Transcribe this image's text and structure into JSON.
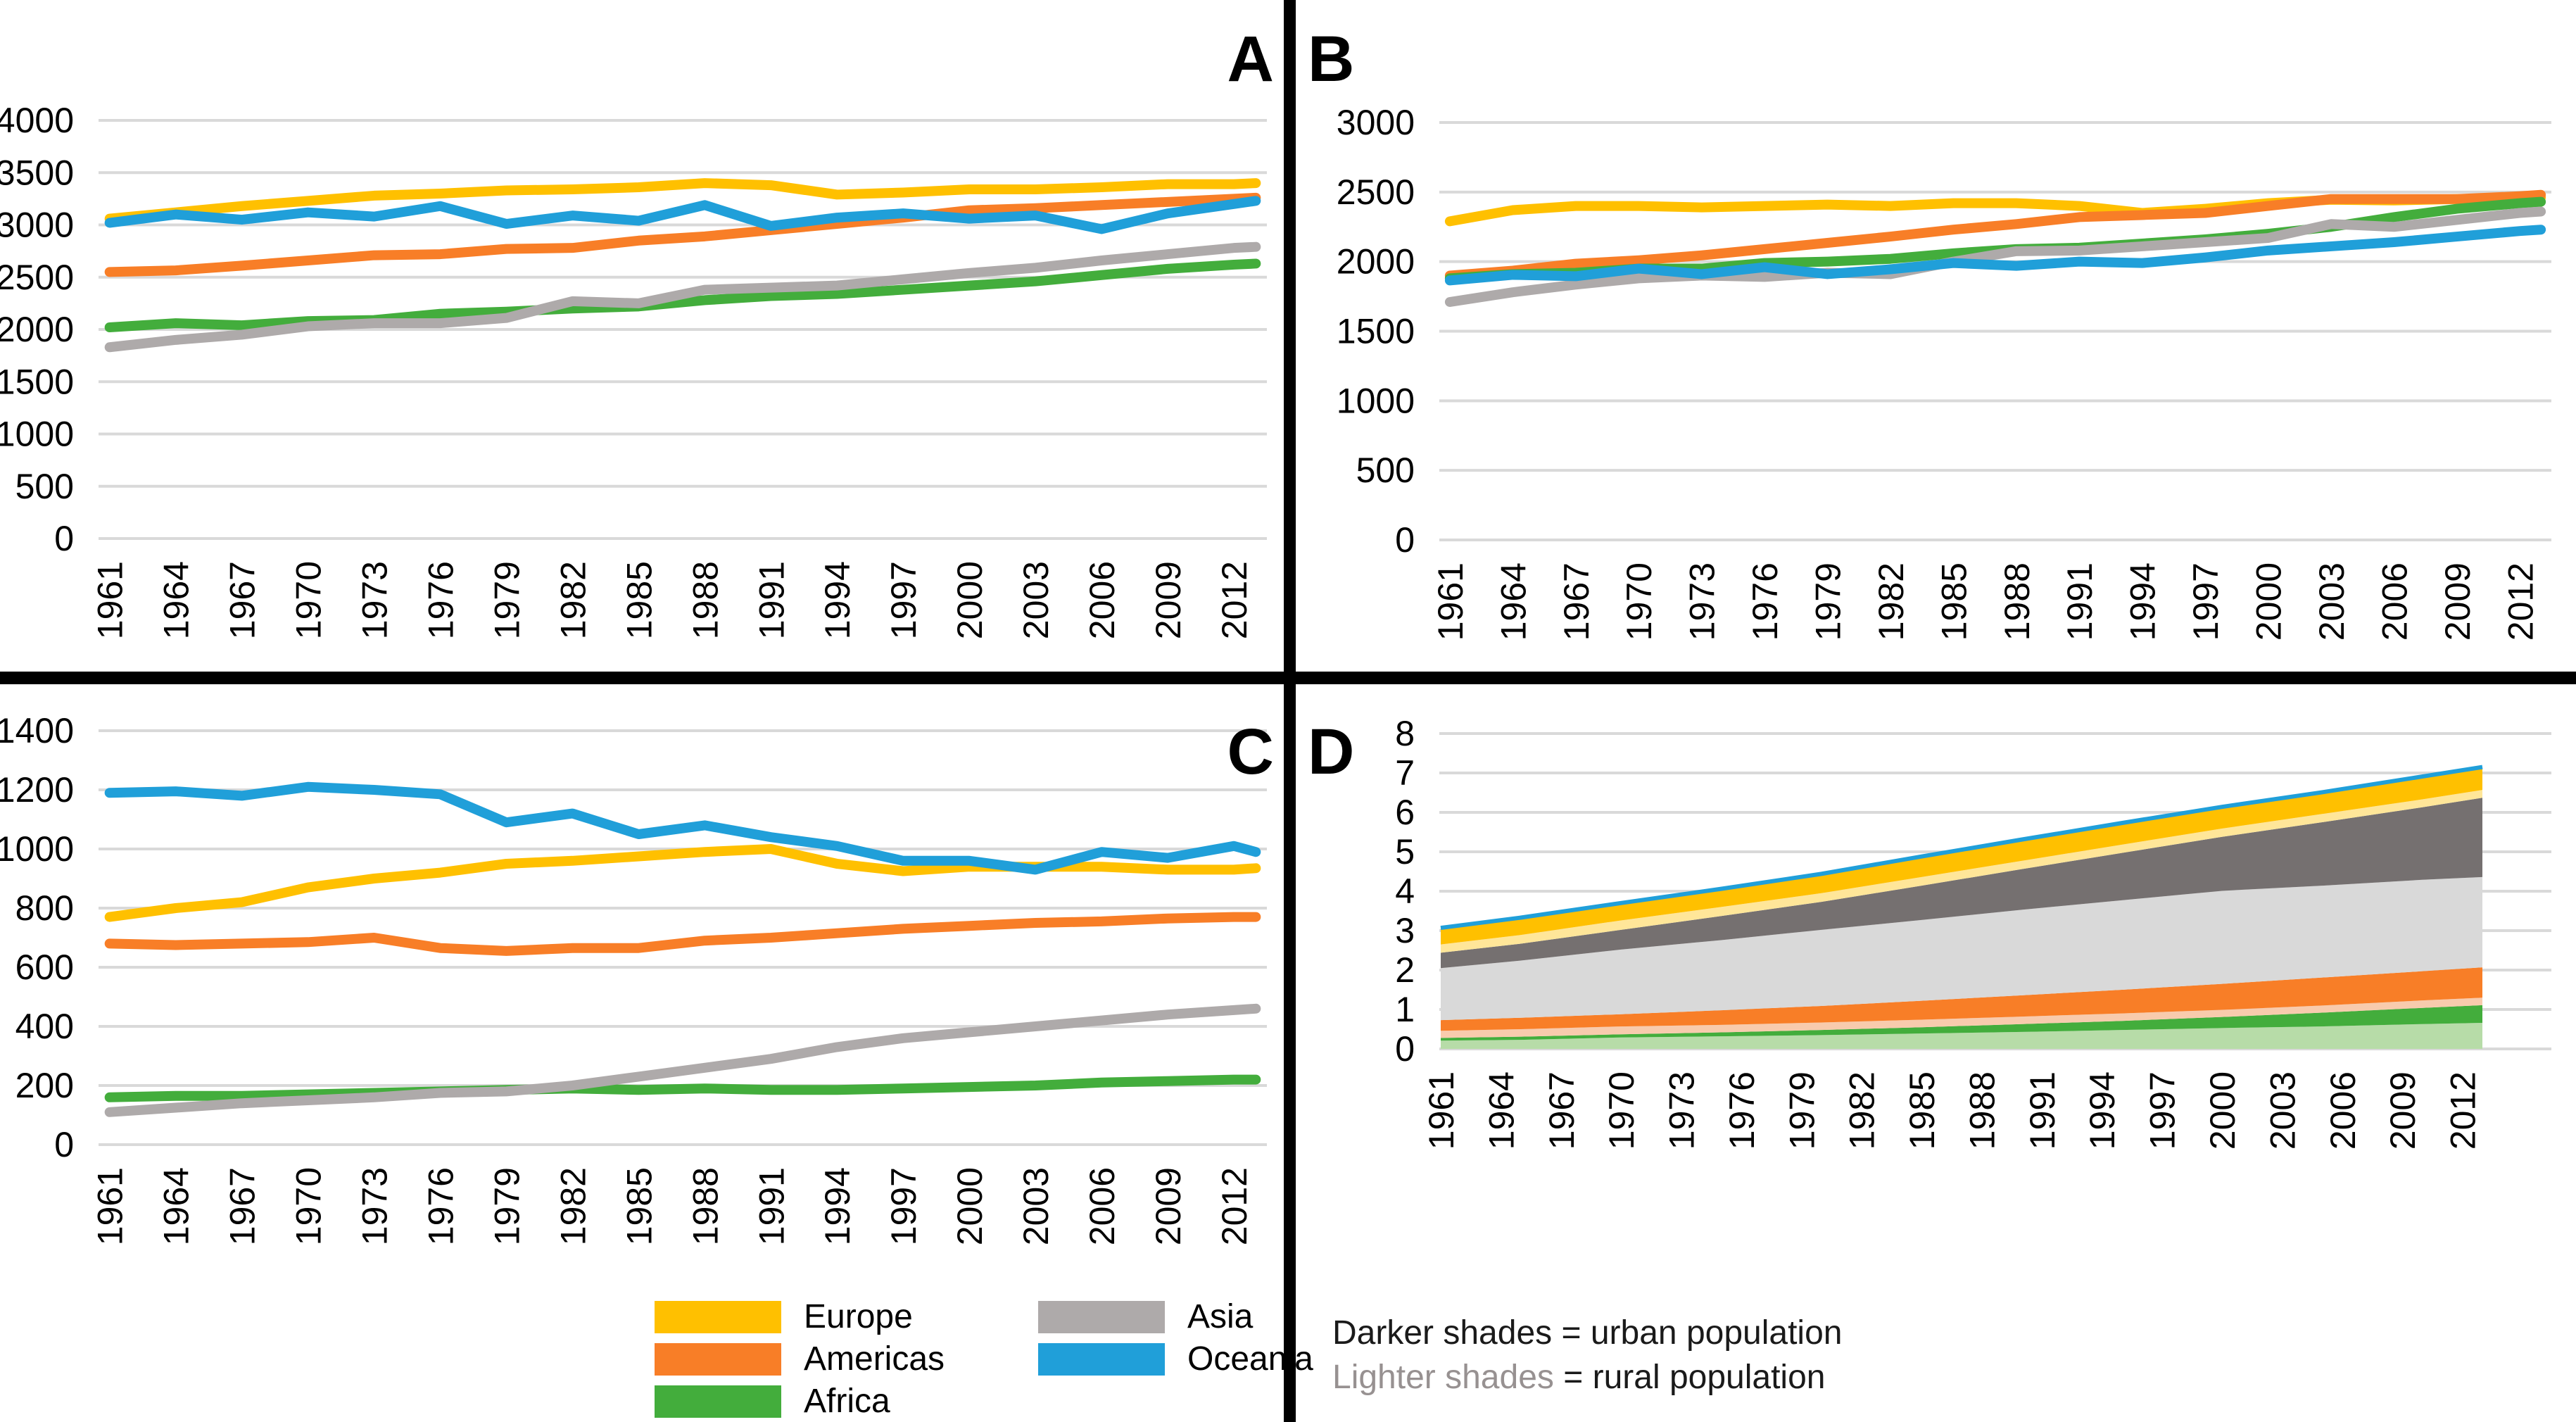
{
  "figure": {
    "panel_labels": [
      "A",
      "B",
      "C",
      "D"
    ]
  },
  "colors": {
    "europe": "#FFC000",
    "americas": "#F87E27",
    "africa": "#43AD3C",
    "asia": "#AEAAAA",
    "oceania": "#209FD9",
    "gridline": "#D9D9D9",
    "europe_rural": "#FFE699",
    "americas_rural": "#F8CBAD",
    "africa_rural": "#B7DCA8",
    "asia_rural": "#D9D9D9",
    "asia_urban_dark": "#757070"
  },
  "chart_data": [
    {
      "id": "A",
      "type": "line",
      "title": "A",
      "xlabel": "",
      "ylabel": "",
      "ylim": [
        0,
        4000
      ],
      "ystep": 500,
      "grid": true,
      "x": [
        1961,
        1964,
        1967,
        1970,
        1973,
        1976,
        1979,
        1982,
        1985,
        1988,
        1991,
        1994,
        1997,
        2000,
        2003,
        2006,
        2009,
        2012,
        2013
      ],
      "tick_years": [
        1961,
        1964,
        1967,
        1970,
        1973,
        1976,
        1979,
        1982,
        1985,
        1988,
        1991,
        1994,
        1997,
        2000,
        2003,
        2006,
        2009,
        2012
      ],
      "series": [
        {
          "name": "Europe",
          "color": "#FFC000",
          "values": [
            3060,
            3120,
            3180,
            3230,
            3280,
            3300,
            3330,
            3340,
            3360,
            3400,
            3380,
            3290,
            3310,
            3340,
            3340,
            3360,
            3390,
            3390,
            3400
          ]
        },
        {
          "name": "Americas",
          "color": "#F87E27",
          "values": [
            2550,
            2565,
            2610,
            2660,
            2710,
            2720,
            2770,
            2780,
            2850,
            2890,
            2950,
            3010,
            3070,
            3140,
            3160,
            3190,
            3220,
            3250,
            3260
          ]
        },
        {
          "name": "Africa",
          "color": "#43AD3C",
          "values": [
            2020,
            2060,
            2040,
            2080,
            2090,
            2150,
            2170,
            2200,
            2220,
            2280,
            2320,
            2340,
            2380,
            2420,
            2460,
            2520,
            2580,
            2620,
            2630
          ]
        },
        {
          "name": "Asia",
          "color": "#AEAAAA",
          "values": [
            1830,
            1900,
            1950,
            2030,
            2060,
            2060,
            2110,
            2270,
            2250,
            2380,
            2400,
            2420,
            2480,
            2540,
            2590,
            2660,
            2720,
            2780,
            2790
          ]
        },
        {
          "name": "Oceania",
          "color": "#209FD9",
          "values": [
            3020,
            3100,
            3050,
            3120,
            3080,
            3180,
            3010,
            3090,
            3040,
            3190,
            2990,
            3070,
            3110,
            3060,
            3090,
            2960,
            3110,
            3200,
            3230
          ]
        }
      ]
    },
    {
      "id": "B",
      "type": "line",
      "title": "B",
      "xlabel": "",
      "ylabel": "",
      "ylim": [
        0,
        3000
      ],
      "ystep": 500,
      "grid": true,
      "x": [
        1961,
        1964,
        1967,
        1970,
        1973,
        1976,
        1979,
        1982,
        1985,
        1988,
        1991,
        1994,
        1997,
        2000,
        2003,
        2006,
        2009,
        2012,
        2013
      ],
      "tick_years": [
        1961,
        1964,
        1967,
        1970,
        1973,
        1976,
        1979,
        1982,
        1985,
        1988,
        1991,
        1994,
        1997,
        2000,
        2003,
        2006,
        2009,
        2012
      ],
      "series": [
        {
          "name": "Europe",
          "color": "#FFC000",
          "values": [
            2290,
            2370,
            2400,
            2400,
            2390,
            2400,
            2410,
            2400,
            2420,
            2420,
            2400,
            2350,
            2380,
            2420,
            2445,
            2440,
            2450,
            2450,
            2460
          ]
        },
        {
          "name": "Americas",
          "color": "#F87E27",
          "values": [
            1900,
            1935,
            1985,
            2010,
            2045,
            2090,
            2135,
            2180,
            2230,
            2270,
            2320,
            2335,
            2350,
            2400,
            2450,
            2450,
            2450,
            2470,
            2480
          ]
        },
        {
          "name": "Africa",
          "color": "#43AD3C",
          "values": [
            1880,
            1910,
            1920,
            1950,
            1950,
            1990,
            2000,
            2020,
            2060,
            2090,
            2100,
            2130,
            2160,
            2200,
            2250,
            2320,
            2380,
            2420,
            2430
          ]
        },
        {
          "name": "Asia",
          "color": "#AEAAAA",
          "values": [
            1710,
            1780,
            1835,
            1880,
            1900,
            1890,
            1920,
            1910,
            2000,
            2075,
            2080,
            2110,
            2140,
            2170,
            2270,
            2250,
            2300,
            2350,
            2360
          ]
        },
        {
          "name": "Oceania",
          "color": "#209FD9",
          "values": [
            1865,
            1905,
            1895,
            1950,
            1910,
            1960,
            1910,
            1945,
            1990,
            1970,
            2000,
            1990,
            2030,
            2080,
            2110,
            2140,
            2180,
            2220,
            2230
          ]
        }
      ]
    },
    {
      "id": "C",
      "type": "line",
      "title": "C",
      "xlabel": "",
      "ylabel": "",
      "ylim": [
        0,
        1400
      ],
      "ystep": 200,
      "grid": true,
      "x": [
        1961,
        1964,
        1967,
        1970,
        1973,
        1976,
        1979,
        1982,
        1985,
        1988,
        1991,
        1994,
        1997,
        2000,
        2003,
        2006,
        2009,
        2012,
        2013
      ],
      "tick_years": [
        1961,
        1964,
        1967,
        1970,
        1973,
        1976,
        1979,
        1982,
        1985,
        1988,
        1991,
        1994,
        1997,
        2000,
        2003,
        2006,
        2009,
        2012
      ],
      "series": [
        {
          "name": "Europe",
          "color": "#FFC000",
          "values": [
            770,
            800,
            820,
            870,
            900,
            920,
            950,
            960,
            975,
            990,
            1000,
            950,
            925,
            940,
            940,
            940,
            930,
            930,
            935
          ]
        },
        {
          "name": "Americas",
          "color": "#F87E27",
          "values": [
            680,
            675,
            680,
            685,
            700,
            665,
            655,
            665,
            665,
            690,
            700,
            715,
            730,
            740,
            750,
            755,
            765,
            770,
            770
          ]
        },
        {
          "name": "Africa",
          "color": "#43AD3C",
          "values": [
            160,
            165,
            165,
            170,
            175,
            180,
            185,
            190,
            185,
            190,
            185,
            185,
            190,
            195,
            200,
            210,
            215,
            220,
            220
          ]
        },
        {
          "name": "Asia",
          "color": "#AEAAAA",
          "values": [
            110,
            125,
            140,
            150,
            160,
            175,
            180,
            200,
            230,
            260,
            290,
            330,
            360,
            380,
            400,
            420,
            440,
            455,
            460
          ]
        },
        {
          "name": "Oceania",
          "color": "#209FD9",
          "values": [
            1190,
            1195,
            1180,
            1210,
            1200,
            1185,
            1090,
            1120,
            1050,
            1080,
            1040,
            1010,
            960,
            960,
            930,
            990,
            970,
            1010,
            990
          ]
        }
      ]
    },
    {
      "id": "D",
      "type": "area",
      "title": "D",
      "xlabel": "",
      "ylabel": "",
      "ylim": [
        0,
        8
      ],
      "ystep": 1,
      "grid": true,
      "legend_note": "stacked area, billions; darker shade = urban, lighter shade = rural",
      "x": [
        1961,
        1965,
        1970,
        1975,
        1980,
        1985,
        1990,
        1995,
        2000,
        2005,
        2010,
        2013
      ],
      "tick_years": [
        1961,
        1964,
        1967,
        1970,
        1973,
        1976,
        1979,
        1982,
        1985,
        1988,
        1991,
        1994,
        1997,
        2000,
        2003,
        2006,
        2009,
        2012
      ],
      "series": [
        {
          "name": "Africa rural",
          "color": "#B7DCA8",
          "values": [
            0.21,
            0.23,
            0.29,
            0.32,
            0.35,
            0.39,
            0.43,
            0.48,
            0.53,
            0.57,
            0.63,
            0.66
          ]
        },
        {
          "name": "Africa urban",
          "color": "#43AD3C",
          "values": [
            0.07,
            0.08,
            0.08,
            0.1,
            0.13,
            0.16,
            0.2,
            0.23,
            0.28,
            0.35,
            0.41,
            0.45
          ]
        },
        {
          "name": "Americas rural",
          "color": "#F8CBAD",
          "values": [
            0.18,
            0.19,
            0.2,
            0.19,
            0.19,
            0.19,
            0.19,
            0.19,
            0.18,
            0.18,
            0.19,
            0.19
          ]
        },
        {
          "name": "Americas urban",
          "color": "#F87E27",
          "values": [
            0.27,
            0.29,
            0.31,
            0.37,
            0.42,
            0.48,
            0.54,
            0.6,
            0.66,
            0.71,
            0.74,
            0.77
          ]
        },
        {
          "name": "Asia rural",
          "color": "#D9D9D9",
          "values": [
            1.32,
            1.45,
            1.64,
            1.78,
            1.93,
            2.05,
            2.17,
            2.27,
            2.36,
            2.33,
            2.32,
            2.29
          ]
        },
        {
          "name": "Asia urban",
          "color": "#757070",
          "values": [
            0.39,
            0.43,
            0.5,
            0.61,
            0.71,
            0.87,
            1.03,
            1.2,
            1.37,
            1.61,
            1.84,
            2.01
          ]
        },
        {
          "name": "Europe rural",
          "color": "#FFE699",
          "values": [
            0.21,
            0.22,
            0.24,
            0.23,
            0.22,
            0.22,
            0.21,
            0.21,
            0.21,
            0.21,
            0.2,
            0.2
          ]
        },
        {
          "name": "Europe urban",
          "color": "#FFC000",
          "values": [
            0.4,
            0.42,
            0.42,
            0.44,
            0.47,
            0.49,
            0.51,
            0.52,
            0.52,
            0.52,
            0.54,
            0.54
          ]
        },
        {
          "name": "Oceania",
          "color": "#209FD9",
          "values": [
            0.02,
            0.02,
            0.02,
            0.02,
            0.02,
            0.03,
            0.03,
            0.03,
            0.03,
            0.03,
            0.04,
            0.04
          ]
        }
      ],
      "outline_color": "#209FD9"
    }
  ],
  "legend": {
    "items": [
      {
        "label": "Europe",
        "color": "#FFC000"
      },
      {
        "label": "Americas",
        "color": "#F87E27"
      },
      {
        "label": "Africa",
        "color": "#43AD3C"
      },
      {
        "label": "Asia",
        "color": "#AEAAAA"
      },
      {
        "label": "Oceania",
        "color": "#209FD9"
      }
    ]
  },
  "caption": {
    "line1_emph": "Darker shades",
    "line1_rest": " = urban population",
    "line2_emph": "Lighter shades",
    "line2_rest": " = rural population"
  }
}
